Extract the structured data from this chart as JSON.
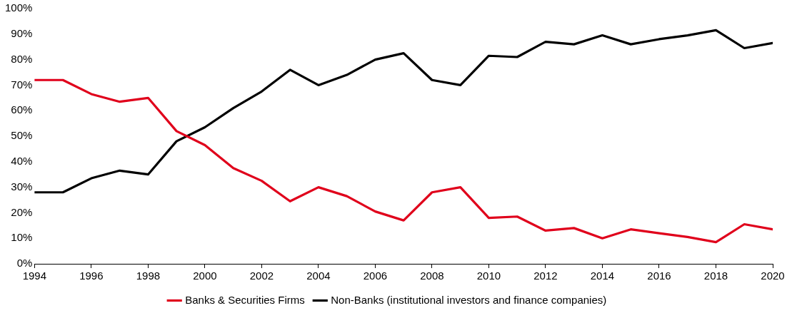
{
  "chart_data": {
    "type": "line",
    "x": [
      1994,
      1995,
      1996,
      1997,
      1998,
      1999,
      2000,
      2001,
      2002,
      2003,
      2004,
      2005,
      2006,
      2007,
      2008,
      2009,
      2010,
      2011,
      2012,
      2013,
      2014,
      2015,
      2016,
      2017,
      2018,
      2019,
      2020
    ],
    "series": [
      {
        "name": "Banks & Securities Firms",
        "color": "#e0001b",
        "values": [
          72,
          72,
          66.5,
          63.5,
          65,
          52,
          46.5,
          37.5,
          32.5,
          24.5,
          30,
          26.5,
          20.5,
          17,
          28,
          30,
          18,
          18.5,
          13,
          14,
          10,
          13.5,
          12,
          10.5,
          8.5,
          15.5,
          13.5
        ]
      },
      {
        "name": "Non-Banks (institutional investors and finance companies)",
        "color": "#000000",
        "values": [
          28,
          28,
          33.5,
          36.5,
          35,
          48,
          53.5,
          61,
          67.5,
          76,
          70,
          74,
          80,
          82.5,
          72,
          70,
          81.5,
          81,
          87,
          86,
          89.5,
          86,
          88,
          89.5,
          91.5,
          84.5,
          86.5
        ]
      }
    ],
    "xlim": [
      1994,
      2020
    ],
    "xticks": [
      1994,
      1996,
      1998,
      2000,
      2002,
      2004,
      2006,
      2008,
      2010,
      2012,
      2014,
      2016,
      2018,
      2020
    ],
    "ylim": [
      0,
      100
    ],
    "yticks": [
      {
        "value": 0,
        "label": "0%"
      },
      {
        "value": 10,
        "label": "10%"
      },
      {
        "value": 20,
        "label": "20%"
      },
      {
        "value": 30,
        "label": "30%"
      },
      {
        "value": 40,
        "label": "40%"
      },
      {
        "value": 50,
        "label": "50%"
      },
      {
        "value": 60,
        "label": "60%"
      },
      {
        "value": 70,
        "label": "70%"
      },
      {
        "value": 80,
        "label": "80%"
      },
      {
        "value": 90,
        "label": "90%"
      },
      {
        "value": 100,
        "label": "100%"
      }
    ],
    "grid": false,
    "legend": "bottom",
    "marker": "none",
    "line_style": "solid"
  }
}
